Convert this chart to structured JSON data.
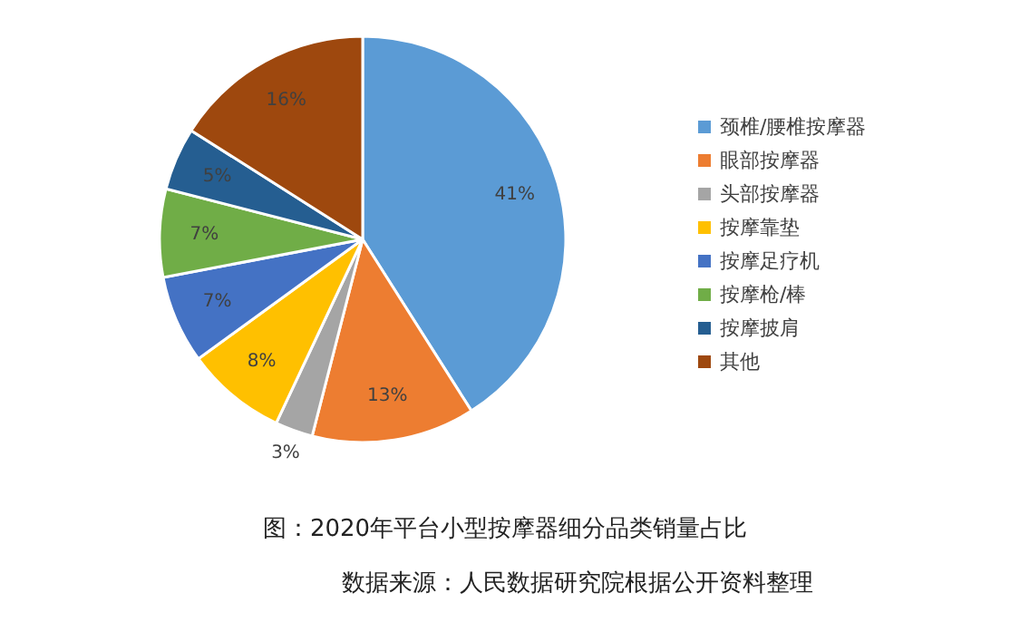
{
  "chart_data": {
    "type": "pie",
    "title": "图：2020年平台小型按摩器细分品类销量占比",
    "annotations": [
      "数据来源：人民数据研究院根据公开资料整理"
    ],
    "categories": [
      "颈椎/腰椎按摩器",
      "眼部按摩器",
      "头部按摩器",
      "按摩靠垫",
      "按摩足疗机",
      "按摩枪/棒",
      "按摩披肩",
      "其他"
    ],
    "values": [
      41,
      13,
      3,
      8,
      7,
      7,
      5,
      16
    ],
    "colors": [
      "#5b9bd5",
      "#ed7d31",
      "#a5a5a5",
      "#ffc000",
      "#4472c4",
      "#70ad47",
      "#255e91",
      "#9e480e"
    ],
    "value_labels": [
      "41%",
      "13%",
      "3%",
      "8%",
      "7%",
      "7%",
      "5%",
      "16%"
    ],
    "legend": "right"
  }
}
